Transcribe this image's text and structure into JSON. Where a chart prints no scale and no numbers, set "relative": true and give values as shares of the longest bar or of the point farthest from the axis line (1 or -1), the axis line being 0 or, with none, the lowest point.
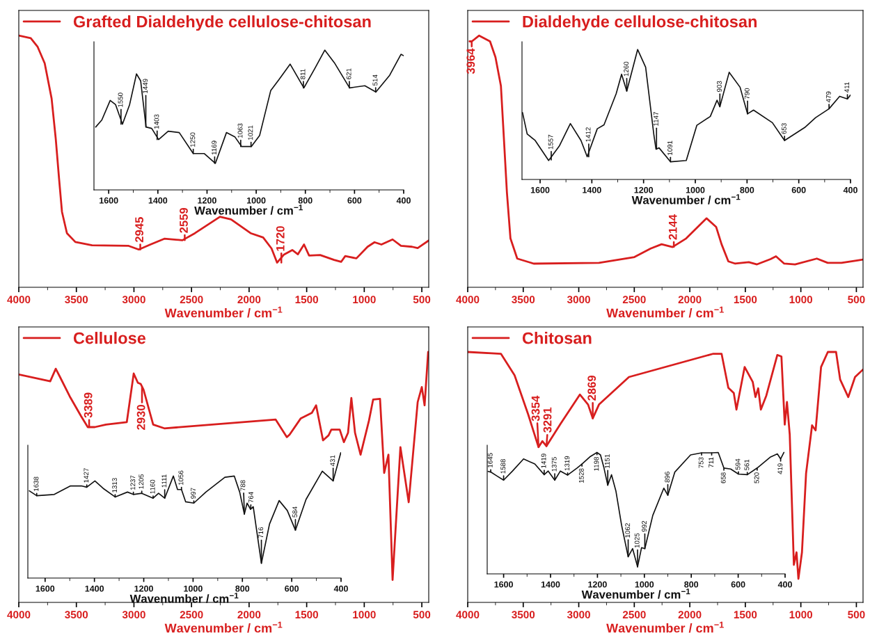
{
  "chart_data": [
    {
      "type": "line",
      "relative": true,
      "xlim": [
        4000,
        440
      ],
      "xticks": [
        4000,
        3500,
        3000,
        2500,
        2000,
        1500,
        1000,
        500
      ],
      "xlabel": "Wavenumber / cm$^{−1}$",
      "tick_labels": "x",
      "legend": "top left",
      "series": [
        {
          "name": "Grafted Dialdehyde cellulose-chitosan",
          "color": "#d81e1e",
          "x": [
            4000,
            3896,
            3836,
            3775,
            3715,
            3679,
            3650,
            3625,
            3582,
            3509,
            3364,
            3050,
            2958,
            2857,
            2736,
            2579,
            2470,
            2253,
            2157,
            1987,
            1878,
            1805,
            1757,
            1697,
            1625,
            1576,
            1523,
            1479,
            1383,
            1262,
            1201,
            1165,
            1068,
            971,
            911,
            851,
            754,
            681,
            585,
            536,
            440
          ],
          "values": [
            1.0,
            0.99,
            0.955,
            0.89,
            0.75,
            0.59,
            0.43,
            0.3,
            0.215,
            0.18,
            0.167,
            0.165,
            0.15,
            0.17,
            0.193,
            0.187,
            0.215,
            0.28,
            0.27,
            0.215,
            0.198,
            0.154,
            0.098,
            0.13,
            0.148,
            0.131,
            0.17,
            0.126,
            0.128,
            0.109,
            0.101,
            0.124,
            0.115,
            0.161,
            0.179,
            0.17,
            0.19,
            0.165,
            0.161,
            0.156,
            0.186
          ]
        }
      ],
      "annotations": [
        {
          "text": "2945",
          "x": 2945,
          "y": 0.15
        },
        {
          "text": "2559",
          "x": 2559,
          "y": 0.187
        },
        {
          "text": "1720",
          "x": 1720,
          "y": 0.098
        }
      ]
    },
    {
      "type": "line",
      "relative": true,
      "xlim": [
        1660,
        400
      ],
      "xticks": [
        1600,
        1400,
        1200,
        1000,
        800,
        600,
        400
      ],
      "xlabel": "Wavenumber / cm$^{−1}$",
      "tick_labels": "x",
      "series": [
        {
          "color": "#111111",
          "x": [
            1653,
            1628,
            1594,
            1572,
            1544,
            1515,
            1487,
            1470,
            1448,
            1425,
            1397,
            1358,
            1313,
            1256,
            1211,
            1166,
            1121,
            1087,
            1059,
            1020,
            986,
            941,
            907,
            862,
            806,
            761,
            721,
            682,
            620,
            558,
            513,
            457,
            411,
            400
          ],
          "values": [
            0.45,
            0.5,
            0.64,
            0.61,
            0.47,
            0.61,
            0.83,
            0.78,
            0.45,
            0.44,
            0.36,
            0.42,
            0.41,
            0.26,
            0.26,
            0.19,
            0.41,
            0.38,
            0.31,
            0.31,
            0.39,
            0.71,
            0.79,
            0.9,
            0.73,
            0.87,
            1.0,
            0.91,
            0.73,
            0.745,
            0.7,
            0.82,
            0.97,
            0.96
          ]
        }
      ],
      "annotations": [
        {
          "text": "1550",
          "x": 1550,
          "y": 0.47
        },
        {
          "text": "1449",
          "x": 1449,
          "y": 0.45
        },
        {
          "text": "1403",
          "x": 1403,
          "y": 0.36
        },
        {
          "text": "1250",
          "x": 1256,
          "y": 0.26
        },
        {
          "text": "1169",
          "x": 1169,
          "y": 0.19
        },
        {
          "text": "1063",
          "x": 1063,
          "y": 0.31
        },
        {
          "text": "1021",
          "x": 1021,
          "y": 0.31
        },
        {
          "text": "811",
          "x": 808,
          "y": 0.73
        },
        {
          "text": "621",
          "x": 621,
          "y": 0.73
        },
        {
          "text": "514",
          "x": 514,
          "y": 0.7
        }
      ]
    },
    {
      "type": "line",
      "relative": true,
      "xlim": [
        4000,
        440
      ],
      "xticks": [
        4000,
        3500,
        3000,
        2500,
        2000,
        1500,
        1000,
        500
      ],
      "xlabel": "Wavenumber / cm$^{−1}$",
      "tick_labels": "x",
      "legend": "top left",
      "series": [
        {
          "name": "Dialdehyde cellulose-chitosan",
          "color": "#d81e1e",
          "x": [
            3983,
            3963,
            3897,
            3799,
            3750,
            3701,
            3676,
            3647,
            3615,
            3554,
            3406,
            2818,
            2499,
            2352,
            2254,
            2156,
            2033,
            1849,
            1763,
            1714,
            1653,
            1591,
            1469,
            1395,
            1273,
            1224,
            1150,
            1052,
            856,
            758,
            635,
            500,
            440
          ],
          "values": [
            0.977,
            0.977,
            1.0,
            0.977,
            0.914,
            0.8,
            0.606,
            0.377,
            0.194,
            0.114,
            0.094,
            0.097,
            0.12,
            0.154,
            0.171,
            0.16,
            0.194,
            0.274,
            0.24,
            0.171,
            0.103,
            0.094,
            0.1,
            0.091,
            0.112,
            0.123,
            0.094,
            0.091,
            0.114,
            0.097,
            0.097,
            0.106,
            0.11
          ]
        }
      ],
      "annotations": [
        {
          "text": "3964",
          "x": 3964,
          "y": 0.977
        },
        {
          "text": "2144",
          "x": 2144,
          "y": 0.16
        }
      ]
    },
    {
      "type": "line",
      "relative": true,
      "xlim": [
        1670,
        400
      ],
      "xticks": [
        1600,
        1400,
        1200,
        1000,
        800,
        600,
        400
      ],
      "xlabel": "Wavenumber / cm$^{−1}$",
      "tick_labels": "x",
      "series": [
        {
          "color": "#111111",
          "x": [
            1668,
            1650,
            1619,
            1567,
            1525,
            1483,
            1442,
            1418,
            1379,
            1353,
            1306,
            1285,
            1265,
            1223,
            1192,
            1160,
            1152,
            1140,
            1096,
            1035,
            994,
            942,
            916,
            905,
            869,
            827,
            798,
            775,
            702,
            655,
            577,
            535,
            483,
            442,
            412,
            400
          ],
          "values": [
            0.515,
            0.35,
            0.3,
            0.146,
            0.26,
            0.43,
            0.3,
            0.175,
            0.39,
            0.42,
            0.66,
            0.81,
            0.68,
            1.0,
            0.864,
            0.34,
            0.233,
            0.243,
            0.136,
            0.146,
            0.417,
            0.485,
            0.61,
            0.56,
            0.825,
            0.71,
            0.505,
            0.534,
            0.437,
            0.3,
            0.4,
            0.476,
            0.544,
            0.64,
            0.62,
            0.65
          ]
        }
      ],
      "annotations": [
        {
          "text": "1557",
          "x": 1557,
          "y": 0.15
        },
        {
          "text": "1412",
          "x": 1412,
          "y": 0.175
        },
        {
          "text": "1260",
          "x": 1265,
          "y": 0.68
        },
        {
          "text": "1147",
          "x": 1150,
          "y": 0.233
        },
        {
          "text": "1091",
          "x": 1096,
          "y": 0.136
        },
        {
          "text": "903",
          "x": 905,
          "y": 0.56
        },
        {
          "text": "790",
          "x": 798,
          "y": 0.505
        },
        {
          "text": "653",
          "x": 655,
          "y": 0.3
        },
        {
          "text": "479",
          "x": 483,
          "y": 0.544
        },
        {
          "text": "411",
          "x": 412,
          "y": 0.62
        }
      ]
    },
    {
      "type": "line",
      "relative": true,
      "xlim": [
        4000,
        440
      ],
      "xticks": [
        4000,
        3500,
        3000,
        2500,
        2000,
        1500,
        1000,
        500
      ],
      "xlabel": "Wavenumber / cm$^{−1}$",
      "tick_labels": "x",
      "legend": "top left",
      "series": [
        {
          "name": "Cellulose",
          "color": "#d81e1e",
          "x": [
            4000,
            3727,
            3679,
            3642,
            3558,
            3461,
            3401,
            3340,
            3243,
            3062,
            3002,
            2966,
            2941,
            2917,
            2833,
            2736,
            1769,
            1672,
            1648,
            1551,
            1455,
            1418,
            1358,
            1310,
            1286,
            1213,
            1177,
            1141,
            1112,
            1080,
            1032,
            959,
            923,
            863,
            827,
            790,
            754,
            686,
            614,
            536,
            500,
            476,
            445
          ],
          "values": [
            0.91,
            0.883,
            0.933,
            0.9,
            0.823,
            0.745,
            0.7,
            0.7,
            0.71,
            0.72,
            0.914,
            0.877,
            0.872,
            0.85,
            0.71,
            0.695,
            0.73,
            0.66,
            0.67,
            0.735,
            0.757,
            0.787,
            0.647,
            0.667,
            0.69,
            0.69,
            0.64,
            0.677,
            0.816,
            0.677,
            0.59,
            0.726,
            0.81,
            0.813,
            0.517,
            0.59,
            0.09,
            0.62,
            0.4,
            0.8,
            0.86,
            0.787,
            1.0
          ]
        }
      ],
      "annotations": [
        {
          "text": "3389",
          "x": 3389,
          "y": 0.7
        },
        {
          "text": "2930",
          "x": 2930,
          "y": 0.86
        }
      ]
    },
    {
      "type": "line",
      "relative": true,
      "xlim": [
        1670,
        400
      ],
      "xticks": [
        1600,
        1400,
        1200,
        1000,
        800,
        600,
        400
      ],
      "xlabel": "Wavenumber / cm$^{−1}$",
      "tick_labels": "x",
      "series": [
        {
          "color": "#111111",
          "x": [
            1664,
            1634,
            1563,
            1497,
            1453,
            1431,
            1398,
            1365,
            1316,
            1266,
            1242,
            1208,
            1162,
            1140,
            1115,
            1080,
            1063,
            1047,
            1030,
            997,
            948,
            871,
            833,
            811,
            792,
            781,
            767,
            756,
            723,
            690,
            651,
            618,
            585,
            542,
            476,
            454,
            432,
            401
          ],
          "values": [
            0.696,
            0.657,
            0.667,
            0.735,
            0.735,
            0.725,
            0.775,
            0.716,
            0.647,
            0.686,
            0.667,
            0.676,
            0.637,
            0.676,
            0.637,
            0.814,
            0.706,
            0.706,
            0.608,
            0.598,
            0.686,
            0.804,
            0.814,
            0.686,
            0.51,
            0.598,
            0.549,
            0.569,
            0.118,
            0.431,
            0.618,
            0.539,
            0.382,
            0.627,
            0.853,
            0.814,
            0.775,
            1.0
          ]
        }
      ],
      "annotations": [
        {
          "text": "1638",
          "x": 1634,
          "y": 0.657
        },
        {
          "text": "1427",
          "x": 1431,
          "y": 0.725
        },
        {
          "text": "1313",
          "x": 1316,
          "y": 0.647
        },
        {
          "text": "1237",
          "x": 1242,
          "y": 0.667
        },
        {
          "text": "1205",
          "x": 1208,
          "y": 0.676
        },
        {
          "text": "1160",
          "x": 1162,
          "y": 0.637
        },
        {
          "text": "1111",
          "x": 1115,
          "y": 0.637
        },
        {
          "text": "1056",
          "x": 1047,
          "y": 0.706
        },
        {
          "text": "997",
          "x": 997,
          "y": 0.598
        },
        {
          "text": "788",
          "x": 792,
          "y": 0.51
        },
        {
          "text": "764",
          "x": 767,
          "y": 0.549
        },
        {
          "text": "716",
          "x": 723,
          "y": 0.118
        },
        {
          "text": "584",
          "x": 585,
          "y": 0.382
        },
        {
          "text": "431",
          "x": 432,
          "y": 0.775
        }
      ]
    },
    {
      "type": "line",
      "relative": true,
      "xlim": [
        4000,
        440
      ],
      "xticks": [
        4000,
        3500,
        3000,
        2500,
        2000,
        1500,
        1000,
        500
      ],
      "xlabel": "Wavenumber / cm$^{−1}$",
      "tick_labels": "x",
      "legend": "top left",
      "series": [
        {
          "name": "Chitosan",
          "color": "#d81e1e",
          "x": [
            4000,
            3701,
            3578,
            3455,
            3362,
            3328,
            3291,
            3161,
            2990,
            2916,
            2874,
            2818,
            2548,
            1788,
            1714,
            1653,
            1604,
            1580,
            1506,
            1433,
            1409,
            1384,
            1360,
            1311,
            1212,
            1175,
            1145,
            1125,
            1100,
            1063,
            1039,
            1022,
            990,
            953,
            899,
            867,
            818,
            757,
            683,
            646,
            573,
            512,
            440
          ],
          "values": [
            1.0,
            0.993,
            0.907,
            0.75,
            0.62,
            0.644,
            0.624,
            0.715,
            0.83,
            0.79,
            0.735,
            0.79,
            0.9,
            0.993,
            0.993,
            0.857,
            0.836,
            0.77,
            0.94,
            0.88,
            0.82,
            0.855,
            0.77,
            0.826,
            0.988,
            0.982,
            0.71,
            0.8,
            0.67,
            0.15,
            0.2,
            0.094,
            0.2,
            0.515,
            0.707,
            0.687,
            0.94,
            1.0,
            1.0,
            0.89,
            0.82,
            0.9,
            0.93
          ]
        }
      ],
      "annotations": [
        {
          "text": "3354",
          "x": 3362,
          "y": 0.62
        },
        {
          "text": "3291",
          "x": 3291,
          "y": 0.624
        },
        {
          "text": "2869",
          "x": 2874,
          "y": 0.735
        }
      ]
    },
    {
      "type": "line",
      "relative": true,
      "xlim": [
        1670,
        400
      ],
      "xticks": [
        1600,
        1400,
        1200,
        1000,
        800,
        600,
        400
      ],
      "xlabel": "Wavenumber / cm$^{−1}$",
      "tick_labels": "x",
      "series": [
        {
          "color": "#111111",
          "x": [
            1666,
            1655,
            1628,
            1600,
            1562,
            1515,
            1467,
            1427,
            1410,
            1382,
            1358,
            1327,
            1287,
            1266,
            1230,
            1202,
            1187,
            1173,
            1156,
            1140,
            1121,
            1097,
            1069,
            1050,
            1029,
            1012,
            998,
            964,
            917,
            900,
            870,
            803,
            756,
            713,
            685,
            661,
            632,
            599,
            561,
            519,
            462,
            433,
            419,
            405
          ],
          "values": [
            0.844,
            0.839,
            0.806,
            0.772,
            0.847,
            0.947,
            0.905,
            0.817,
            0.847,
            0.772,
            0.847,
            0.814,
            0.872,
            0.905,
            0.967,
            1.0,
            0.98,
            0.88,
            0.73,
            0.817,
            0.68,
            0.4,
            0.141,
            0.208,
            0.058,
            0.216,
            0.208,
            0.482,
            0.706,
            0.648,
            0.839,
            0.98,
            0.997,
            0.997,
            1.0,
            0.872,
            0.864,
            0.822,
            0.817,
            0.872,
            0.963,
            0.988,
            0.947,
            1.0
          ]
        }
      ],
      "annotations": [
        {
          "text": "1645",
          "x": 1655,
          "y": 0.839
        },
        {
          "text": "1588",
          "x": 1600,
          "y": 0.772
        },
        {
          "text": "1419",
          "x": 1427,
          "y": 0.817
        },
        {
          "text": "1375",
          "x": 1382,
          "y": 0.772
        },
        {
          "text": "1319",
          "x": 1327,
          "y": 0.814
        },
        {
          "text": "1528",
          "x": 1266,
          "y": 0.905
        },
        {
          "text": "1198",
          "x": 1202,
          "y": 1.0
        },
        {
          "text": "1151",
          "x": 1156,
          "y": 0.73
        },
        {
          "text": "1062",
          "x": 1069,
          "y": 0.141
        },
        {
          "text": "1025",
          "x": 1029,
          "y": 0.058
        },
        {
          "text": "992",
          "x": 998,
          "y": 0.208
        },
        {
          "text": "896",
          "x": 900,
          "y": 0.648
        },
        {
          "text": "753",
          "x": 756,
          "y": 0.997
        },
        {
          "text": "711",
          "x": 713,
          "y": 0.997
        },
        {
          "text": "658",
          "x": 661,
          "y": 0.872
        },
        {
          "text": "594",
          "x": 599,
          "y": 0.822
        },
        {
          "text": "561",
          "x": 561,
          "y": 0.817
        },
        {
          "text": "520",
          "x": 519,
          "y": 0.872
        },
        {
          "text": "419",
          "x": 419,
          "y": 0.947
        }
      ]
    }
  ]
}
